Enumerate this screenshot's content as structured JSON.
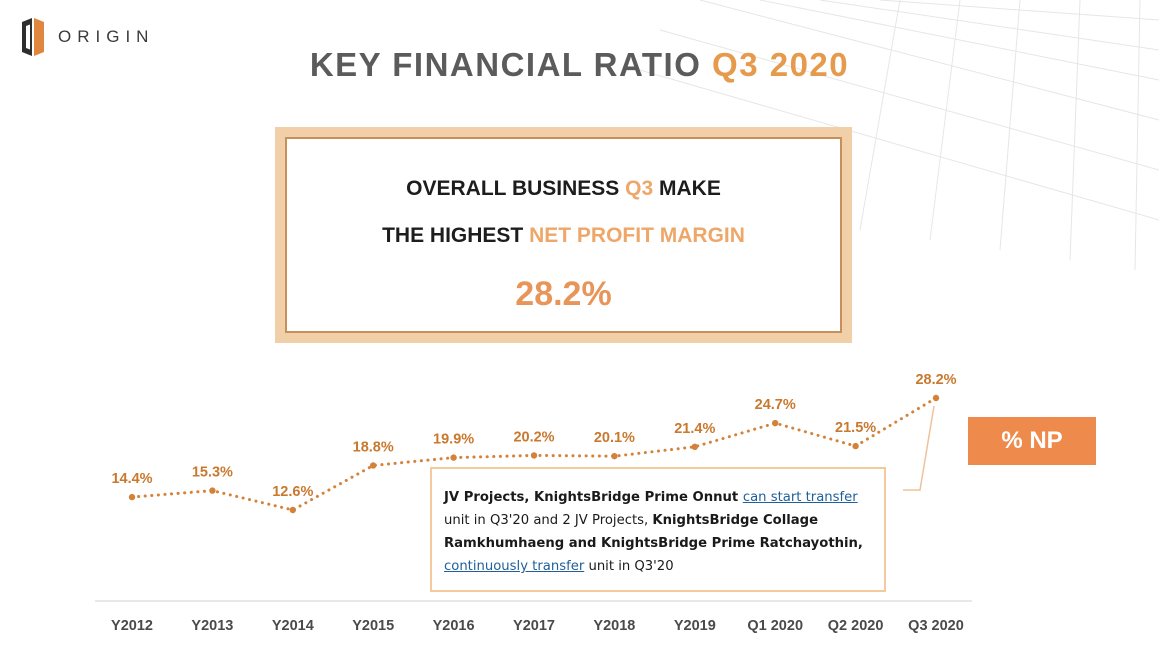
{
  "header": {
    "logo_text": "ORIGIN",
    "title_main": "KEY FINANCIAL RATIO ",
    "title_accent": "Q3 2020"
  },
  "highlight": {
    "line1_a": "OVERALL BUSINESS ",
    "line1_b": "Q3",
    "line1_c": " MAKE",
    "line2_a": "THE HIGHEST ",
    "line2_b": "NET PROFIT MARGIN",
    "value": "28.2%"
  },
  "badge": {
    "label": "% NP"
  },
  "note": {
    "p1": "JV Projects, KnightsBridge Prime Onnut ",
    "link1": "can start transfer ",
    "p2": "unit in Q3'20 and 2 JV Projects,  ",
    "p3": "KnightsBridge Collage Ramkhumhaeng and KnightsBridge Prime Ratchayothin,",
    "p4": " ",
    "link2": "continuously transfer",
    "p5": " unit in Q3'20"
  },
  "colors": {
    "accent": "#e59a4c",
    "line": "#d4823a",
    "label": "#c9782e",
    "badge": "#ee8b4c"
  },
  "chart_data": {
    "type": "line",
    "categories": [
      "Y2012",
      "Y2013",
      "Y2014",
      "Y2015",
      "Y2016",
      "Y2017",
      "Y2018",
      "Y2019",
      "Q1 2020",
      "Q2 2020",
      "Q3 2020"
    ],
    "series": [
      {
        "name": "% NP",
        "values": [
          14.4,
          15.3,
          12.6,
          18.8,
          19.9,
          20.2,
          20.1,
          21.4,
          24.7,
          21.5,
          28.2
        ],
        "labels": [
          "14.4%",
          "15.3%",
          "12.6%",
          "18.8%",
          "19.9%",
          "20.2%",
          "20.1%",
          "21.4%",
          "24.7%",
          "21.5%",
          "28.2%"
        ]
      }
    ],
    "line_style": "dotted",
    "grid": false,
    "y_axis_visible": false
  }
}
